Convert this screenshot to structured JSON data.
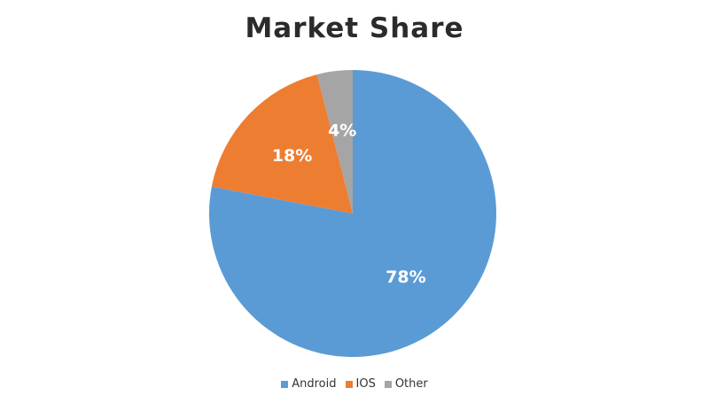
{
  "chart_data": {
    "type": "pie",
    "title": "Market Share",
    "slices": [
      {
        "name": "Android",
        "value": 78,
        "label": "78%",
        "color": "#5b9bd5"
      },
      {
        "name": "IOS",
        "value": 18,
        "label": "18%",
        "color": "#ed7d31"
      },
      {
        "name": "Other",
        "value": 4,
        "label": "4%",
        "color": "#a5a5a5"
      }
    ],
    "legend_position": "bottom",
    "start": "12 o'clock",
    "direction": "clockwise"
  }
}
